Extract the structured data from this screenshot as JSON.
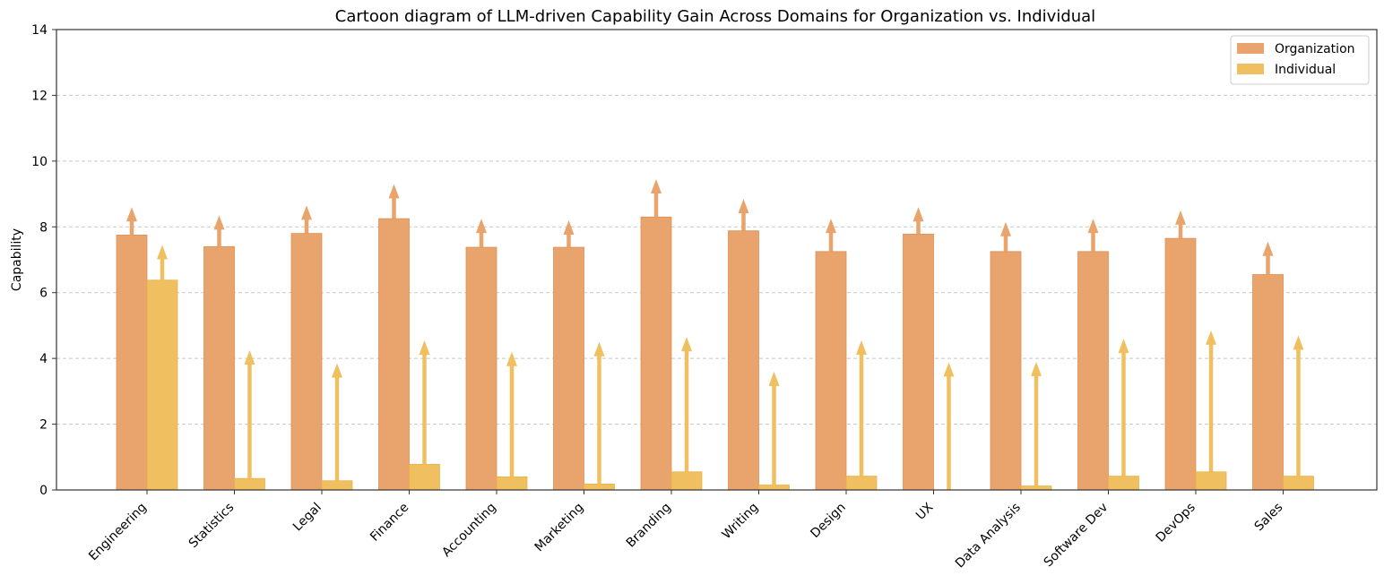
{
  "chart_data": {
    "type": "bar",
    "title": "Cartoon diagram of LLM-driven Capability Gain Across Domains for Organization vs. Individual",
    "xlabel": "",
    "ylabel": "Capability",
    "ylim": [
      0,
      14
    ],
    "yticks": [
      0,
      2,
      4,
      6,
      8,
      10,
      12,
      14
    ],
    "grid": "horizontal-dashed",
    "legend": "top-right",
    "categories": [
      "Engineering",
      "Statistics",
      "Legal",
      "Finance",
      "Accounting",
      "Marketing",
      "Branding",
      "Writing",
      "Design",
      "UX",
      "Data Analysis",
      "Software Dev",
      "DevOps",
      "Sales"
    ],
    "series": [
      {
        "name": "Organization",
        "color": "#e8a46c",
        "values": [
          7.75,
          7.4,
          7.8,
          8.25,
          7.38,
          7.38,
          8.3,
          7.88,
          7.25,
          7.78,
          7.25,
          7.25,
          7.65,
          6.55
        ],
        "arrow_to": [
          8.6,
          8.35,
          8.65,
          9.3,
          8.25,
          8.2,
          9.45,
          8.85,
          8.25,
          8.6,
          8.15,
          8.25,
          8.5,
          7.55
        ]
      },
      {
        "name": "Individual",
        "color": "#f0c060",
        "values": [
          6.38,
          0.35,
          0.28,
          0.78,
          0.4,
          0.18,
          0.55,
          0.15,
          0.42,
          0.0,
          0.12,
          0.42,
          0.55,
          0.42
        ],
        "arrow_to": [
          7.45,
          4.25,
          3.85,
          4.55,
          4.2,
          4.5,
          4.65,
          3.6,
          4.55,
          3.88,
          3.9,
          4.6,
          4.85,
          4.7
        ]
      }
    ]
  }
}
